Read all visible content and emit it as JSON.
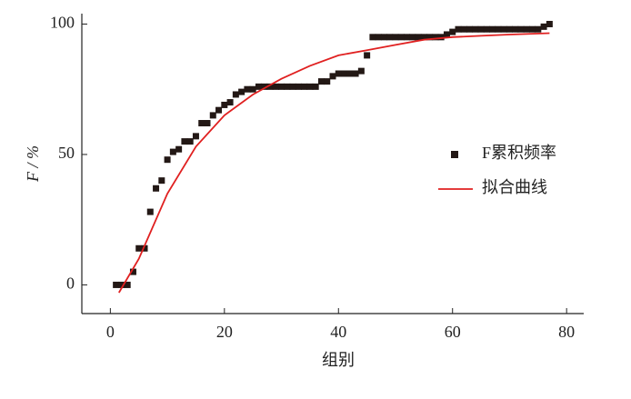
{
  "chart_data": {
    "type": "scatter-fit",
    "xlabel": "组别",
    "ylabel": "F / %",
    "xlim": [
      -5,
      83
    ],
    "ylim": [
      -11,
      104
    ],
    "xticks": [
      0,
      20,
      40,
      60,
      80
    ],
    "yticks": [
      0,
      50,
      100
    ],
    "legend": "right",
    "series": [
      {
        "name": "F累积频率",
        "kind": "scatter",
        "color": "#231815",
        "x": [
          1,
          2,
          3,
          4,
          5,
          6,
          7,
          8,
          9,
          10,
          11,
          12,
          13,
          14,
          15,
          16,
          17,
          18,
          19,
          20,
          21,
          22,
          23,
          24,
          25,
          26,
          27,
          28,
          29,
          30,
          31,
          32,
          33,
          34,
          35,
          36,
          37,
          38,
          39,
          40,
          41,
          42,
          43,
          44,
          45,
          46,
          47,
          48,
          49,
          50,
          51,
          52,
          53,
          54,
          55,
          56,
          57,
          58,
          59,
          60,
          61,
          62,
          63,
          64,
          65,
          66,
          67,
          68,
          69,
          70,
          71,
          72,
          73,
          74,
          75,
          76,
          77
        ],
        "values": [
          0,
          0,
          0,
          5,
          14,
          14,
          28,
          37,
          40,
          48,
          51,
          52,
          55,
          55,
          57,
          62,
          62,
          65,
          67,
          69,
          70,
          73,
          74,
          75,
          75,
          76,
          76,
          76,
          76,
          76,
          76,
          76,
          76,
          76,
          76,
          76,
          78,
          78,
          80,
          81,
          81,
          81,
          81,
          82,
          88,
          95,
          95,
          95,
          95,
          95,
          95,
          95,
          95,
          95,
          95,
          95,
          95,
          95,
          96,
          97,
          98,
          98,
          98,
          98,
          98,
          98,
          98,
          98,
          98,
          98,
          98,
          98,
          98,
          98,
          98,
          99,
          100
        ]
      },
      {
        "name": "拟合曲线",
        "kind": "line",
        "color": "#e02020",
        "x": [
          1.5,
          5,
          10,
          15,
          20,
          25,
          30,
          35,
          40,
          45,
          50,
          55,
          60,
          65,
          70,
          77
        ],
        "values": [
          -3,
          10,
          35,
          53,
          65,
          73,
          79,
          84,
          88,
          90,
          92,
          94,
          95,
          95.5,
          96,
          96.5
        ]
      }
    ]
  }
}
